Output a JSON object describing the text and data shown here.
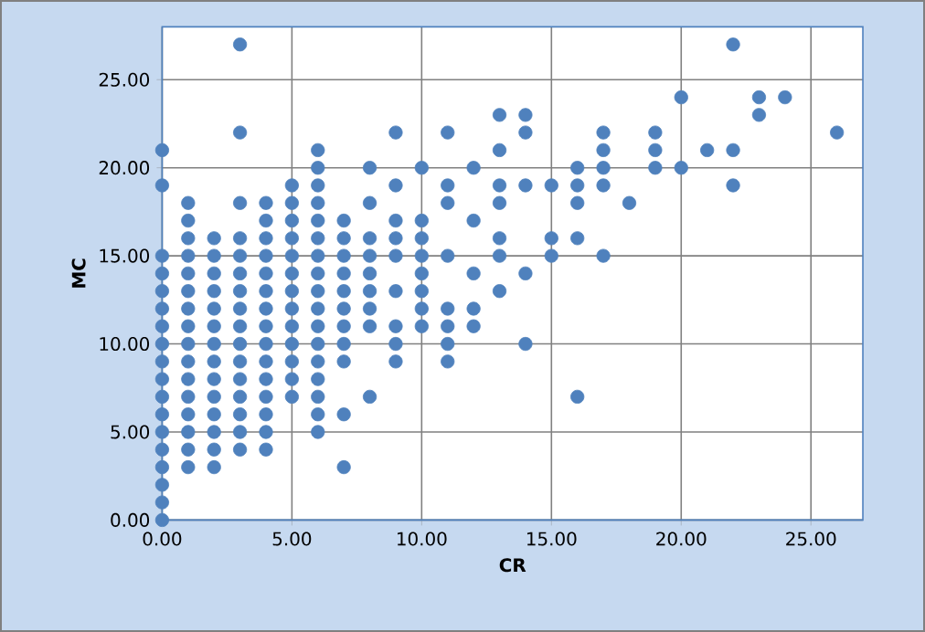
{
  "chart_data": {
    "type": "scatter",
    "xlabel": "CR",
    "ylabel": "MC",
    "xlim": [
      0,
      27
    ],
    "ylim": [
      0,
      28
    ],
    "xticks": [
      {
        "value": 0,
        "label": "0.00"
      },
      {
        "value": 5,
        "label": "5.00"
      },
      {
        "value": 10,
        "label": "10.00"
      },
      {
        "value": 15,
        "label": "15.00"
      },
      {
        "value": 20,
        "label": "20.00"
      },
      {
        "value": 25,
        "label": "25.00"
      }
    ],
    "yticks": [
      {
        "value": 0,
        "label": "0.00"
      },
      {
        "value": 5,
        "label": "5.00"
      },
      {
        "value": 10,
        "label": "10.00"
      },
      {
        "value": 15,
        "label": "15.00"
      },
      {
        "value": 20,
        "label": "20.00"
      },
      {
        "value": 25,
        "label": "25.00"
      }
    ],
    "grid": true,
    "marker": "circle",
    "series": [
      {
        "color": "#4f81bd",
        "x": [
          0,
          0,
          0,
          0,
          1,
          2,
          7,
          0,
          1,
          2,
          3,
          4,
          0,
          1,
          2,
          3,
          4,
          6,
          0,
          1,
          2,
          3,
          4,
          6,
          7,
          0,
          1,
          2,
          3,
          4,
          5,
          6,
          8,
          16,
          0,
          1,
          2,
          3,
          4,
          5,
          6,
          0,
          1,
          2,
          3,
          4,
          5,
          6,
          7,
          9,
          11,
          0,
          1,
          2,
          3,
          4,
          5,
          6,
          7,
          9,
          11,
          14,
          0,
          1,
          2,
          3,
          4,
          5,
          6,
          7,
          8,
          9,
          10,
          11,
          12,
          0,
          1,
          2,
          3,
          4,
          5,
          6,
          7,
          8,
          10,
          11,
          12,
          0,
          1,
          2,
          3,
          4,
          5,
          6,
          7,
          8,
          9,
          10,
          13,
          0,
          1,
          2,
          3,
          4,
          5,
          6,
          7,
          8,
          10,
          12,
          14,
          0,
          1,
          2,
          3,
          4,
          5,
          6,
          7,
          8,
          9,
          10,
          11,
          13,
          15,
          17,
          1,
          2,
          3,
          4,
          5,
          6,
          7,
          8,
          9,
          10,
          13,
          15,
          16,
          1,
          4,
          5,
          6,
          7,
          9,
          10,
          12,
          1,
          3,
          4,
          5,
          6,
          8,
          11,
          13,
          16,
          18,
          0,
          5,
          6,
          9,
          11,
          13,
          14,
          15,
          16,
          17,
          22,
          6,
          8,
          10,
          12,
          16,
          17,
          19,
          20,
          0,
          6,
          13,
          17,
          19,
          21,
          22,
          3,
          9,
          11,
          14,
          17,
          19,
          26,
          13,
          14,
          23,
          20,
          23,
          24,
          3,
          22
        ],
        "values": [
          0,
          1,
          2,
          3,
          3,
          3,
          3,
          4,
          4,
          4,
          4,
          4,
          5,
          5,
          5,
          5,
          5,
          5,
          6,
          6,
          6,
          6,
          6,
          6,
          6,
          7,
          7,
          7,
          7,
          7,
          7,
          7,
          7,
          7,
          8,
          8,
          8,
          8,
          8,
          8,
          8,
          9,
          9,
          9,
          9,
          9,
          9,
          9,
          9,
          9,
          9,
          10,
          10,
          10,
          10,
          10,
          10,
          10,
          10,
          10,
          10,
          10,
          11,
          11,
          11,
          11,
          11,
          11,
          11,
          11,
          11,
          11,
          11,
          11,
          11,
          12,
          12,
          12,
          12,
          12,
          12,
          12,
          12,
          12,
          12,
          12,
          12,
          13,
          13,
          13,
          13,
          13,
          13,
          13,
          13,
          13,
          13,
          13,
          13,
          14,
          14,
          14,
          14,
          14,
          14,
          14,
          14,
          14,
          14,
          14,
          14,
          15,
          15,
          15,
          15,
          15,
          15,
          15,
          15,
          15,
          15,
          15,
          15,
          15,
          15,
          15,
          16,
          16,
          16,
          16,
          16,
          16,
          16,
          16,
          16,
          16,
          16,
          16,
          16,
          17,
          17,
          17,
          17,
          17,
          17,
          17,
          17,
          18,
          18,
          18,
          18,
          18,
          18,
          18,
          18,
          18,
          18,
          19,
          19,
          19,
          19,
          19,
          19,
          19,
          19,
          19,
          19,
          19,
          20,
          20,
          20,
          20,
          20,
          20,
          20,
          20,
          21,
          21,
          21,
          21,
          21,
          21,
          21,
          22,
          22,
          22,
          22,
          22,
          22,
          22,
          23,
          23,
          23,
          24,
          24,
          24,
          27,
          27
        ]
      }
    ]
  }
}
